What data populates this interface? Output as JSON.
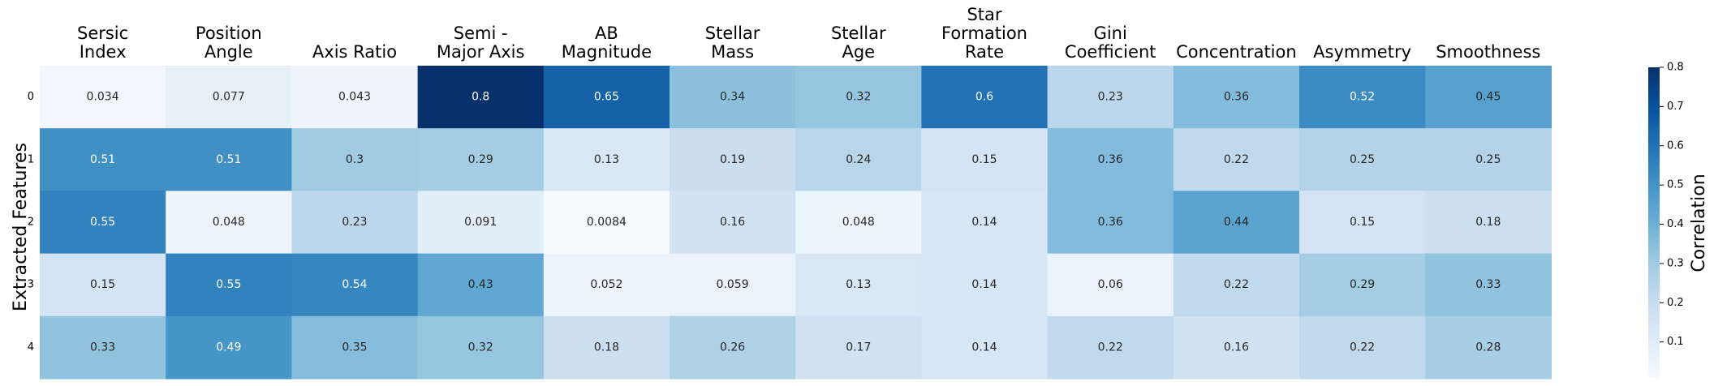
{
  "chart_data": {
    "type": "heatmap",
    "columns": [
      [
        "Sersic",
        "Index"
      ],
      [
        "Position",
        "Angle"
      ],
      [
        "Axis Ratio"
      ],
      [
        "Semi -",
        "Major Axis"
      ],
      [
        "AB",
        "Magnitude"
      ],
      [
        "Stellar",
        "Mass"
      ],
      [
        "Stellar",
        "Age"
      ],
      [
        "Star",
        "Formation",
        "Rate"
      ],
      [
        "Gini",
        "Coefficient"
      ],
      [
        "Concentration"
      ],
      [
        "Asymmetry"
      ],
      [
        "Smoothness"
      ]
    ],
    "rows": [
      "0",
      "1",
      "2",
      "3",
      "4"
    ],
    "values": [
      [
        0.034,
        0.077,
        0.043,
        0.8,
        0.65,
        0.34,
        0.32,
        0.6,
        0.23,
        0.36,
        0.52,
        0.45
      ],
      [
        0.51,
        0.51,
        0.3,
        0.29,
        0.13,
        0.19,
        0.24,
        0.15,
        0.36,
        0.22,
        0.25,
        0.25
      ],
      [
        0.55,
        0.048,
        0.23,
        0.091,
        0.0084,
        0.16,
        0.048,
        0.14,
        0.36,
        0.44,
        0.15,
        0.18
      ],
      [
        0.15,
        0.55,
        0.54,
        0.43,
        0.052,
        0.059,
        0.13,
        0.14,
        0.06,
        0.22,
        0.29,
        0.33
      ],
      [
        0.33,
        0.49,
        0.35,
        0.32,
        0.18,
        0.26,
        0.17,
        0.14,
        0.22,
        0.16,
        0.22,
        0.28
      ]
    ],
    "ylabel": "Extracted Features",
    "colorbar": {
      "label": "Correlation",
      "min": 0.0084,
      "max": 0.8,
      "ticks": [
        "0.1",
        "0.2",
        "0.3",
        "0.4",
        "0.5",
        "0.6",
        "0.7",
        "0.8"
      ],
      "colormap": "Blues",
      "stops": [
        "#f7fbff",
        "#deebf7",
        "#c6dbef",
        "#9ecae1",
        "#6baed6",
        "#4292c6",
        "#2171b5",
        "#08519c",
        "#08306b"
      ]
    }
  }
}
